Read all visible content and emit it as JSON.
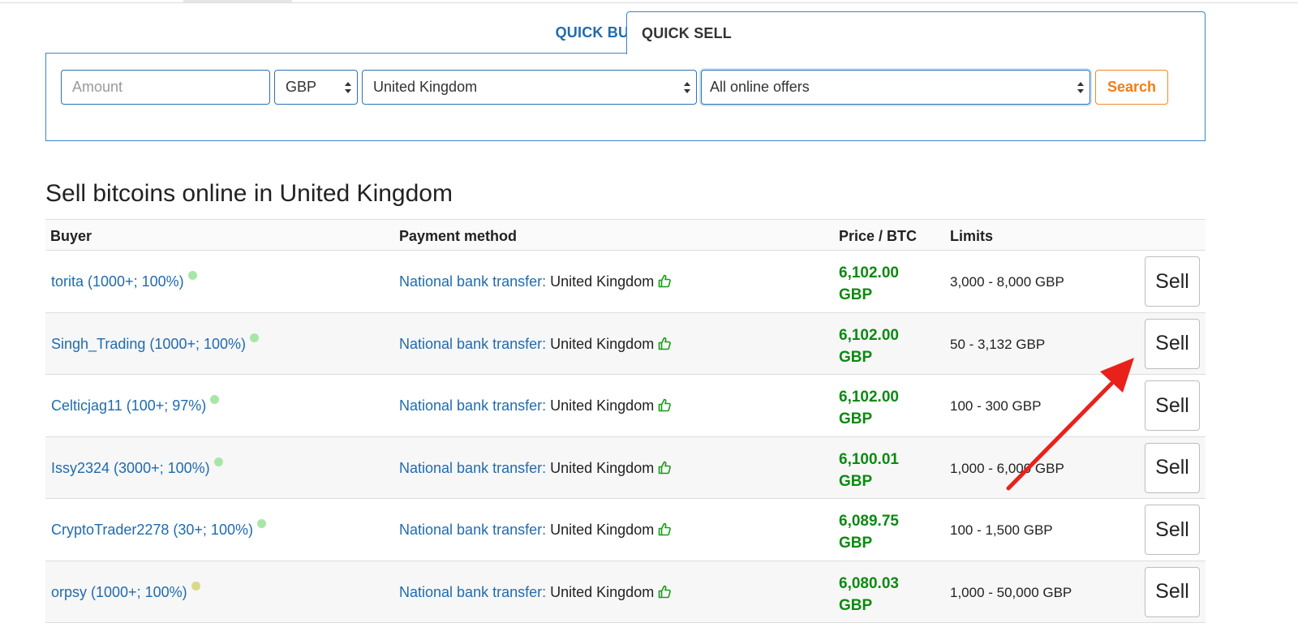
{
  "tabs": {
    "buy_label": "QUICK BUY",
    "sell_label": "QUICK SELL"
  },
  "search": {
    "amount_placeholder": "Amount",
    "currency": "GBP",
    "country": "United Kingdom",
    "offer_type": "All online offers",
    "button_label": "Search"
  },
  "heading": "Sell bitcoins online in United Kingdom",
  "table": {
    "headers": {
      "buyer": "Buyer",
      "payment": "Payment method",
      "price": "Price / BTC",
      "limits": "Limits"
    },
    "rows": [
      {
        "buyer": "torita (1000+; 100%)",
        "status_color": "#a8e6a8",
        "method": "National bank transfer:",
        "location": "United Kingdom",
        "price": "6,102.00",
        "currency": "GBP",
        "limits": "3,000 - 8,000 GBP",
        "action": "Sell"
      },
      {
        "buyer": "Singh_Trading (1000+; 100%)",
        "status_color": "#a8e6a8",
        "method": "National bank transfer:",
        "location": "United Kingdom",
        "price": "6,102.00",
        "currency": "GBP",
        "limits": "50 - 3,132 GBP",
        "action": "Sell"
      },
      {
        "buyer": "Celticjag11 (100+; 97%)",
        "status_color": "#a8e6a8",
        "method": "National bank transfer:",
        "location": "United Kingdom",
        "price": "6,102.00",
        "currency": "GBP",
        "limits": "100 - 300 GBP",
        "action": "Sell"
      },
      {
        "buyer": "Issy2324 (3000+; 100%)",
        "status_color": "#a8e6a8",
        "method": "National bank transfer:",
        "location": "United Kingdom",
        "price": "6,100.01",
        "currency": "GBP",
        "limits": "1,000 - 6,000 GBP",
        "action": "Sell"
      },
      {
        "buyer": "CryptoTrader2278 (30+; 100%)",
        "status_color": "#a8e6a8",
        "method": "National bank transfer:",
        "location": "United Kingdom",
        "price": "6,089.75",
        "currency": "GBP",
        "limits": "100 - 1,500 GBP",
        "action": "Sell"
      },
      {
        "buyer": "orpsy (1000+; 100%)",
        "status_color": "#d9d98c",
        "method": "National bank transfer:",
        "location": "United Kingdom",
        "price": "6,080.03",
        "currency": "GBP",
        "limits": "1,000 - 50,000 GBP",
        "action": "Sell"
      }
    ]
  },
  "colors": {
    "link": "#1f6bb0",
    "price": "#0c8a12",
    "accent_orange": "#f07d16",
    "annotation_arrow": "#e8221b"
  }
}
